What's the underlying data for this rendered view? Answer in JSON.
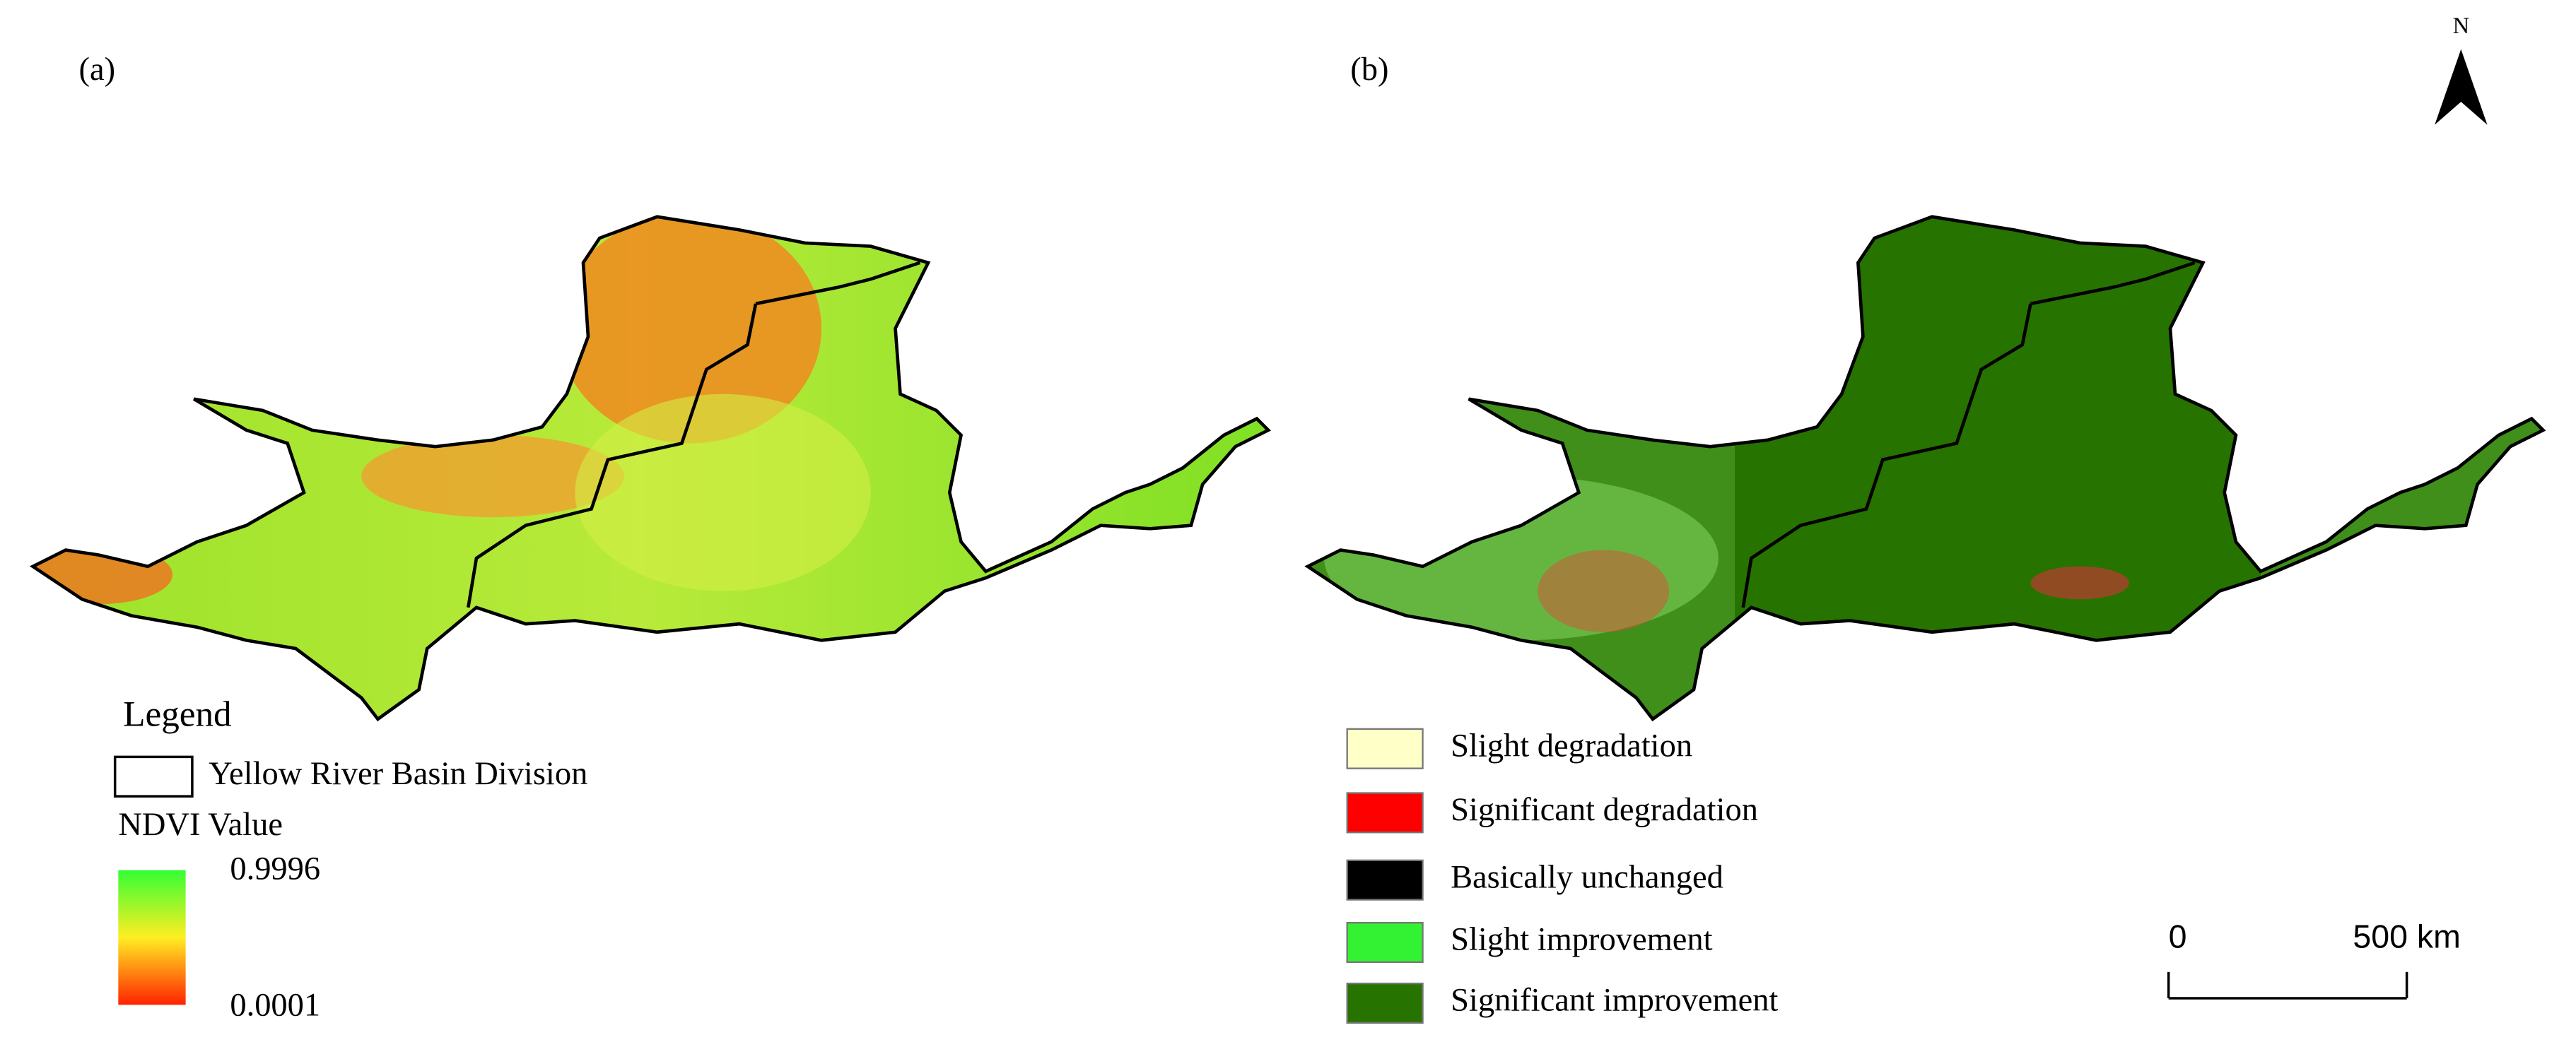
{
  "panels": [
    {
      "label": "(a)",
      "legend": {
        "title": "Legend",
        "boundary": "Yellow River Basin Division",
        "colorbar_title": "NDVI Value",
        "colorbar": {
          "max": 0.9996,
          "min": 0.0001
        }
      }
    },
    {
      "label": "(b)",
      "classes": [
        {
          "label": "Slight degradation",
          "color": "#ffffc8"
        },
        {
          "label": "Significant degradation",
          "color": "#ff0000"
        },
        {
          "label": "Basically unchanged",
          "color": "#000000"
        },
        {
          "label": "Slight improvement",
          "color": "#33f233"
        },
        {
          "label": "Significant improvement",
          "color": "#267300"
        }
      ]
    }
  ],
  "north": "N",
  "scale_bar": {
    "ticks": [
      0,
      {
        "value": 500,
        "label": "500 km"
      }
    ]
  }
}
